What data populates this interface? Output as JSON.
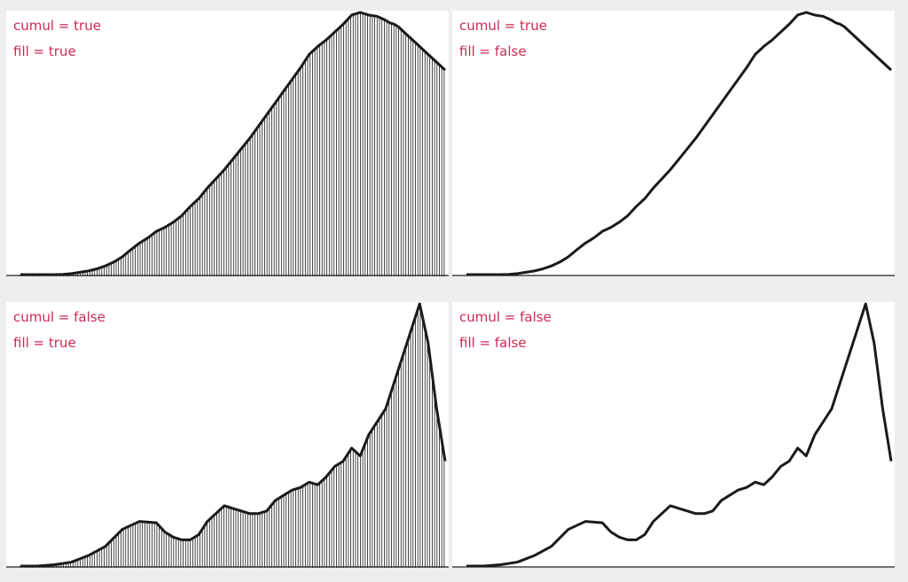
{
  "colors": {
    "label": "#cc2b52",
    "line": "#1a1a1a",
    "panel_bg": "#ffffff",
    "page_bg": "#eeeeee"
  },
  "chart_data": [
    {
      "type": "histogram",
      "label_cumul": "cumul = true",
      "label_fill": "fill = true",
      "cumulative": true,
      "fill": true,
      "x_range": [
        0,
        1
      ],
      "y_range": [
        0,
        1
      ],
      "series": {
        "x": [
          0,
          0.02,
          0.04,
          0.06,
          0.08,
          0.1,
          0.12,
          0.14,
          0.16,
          0.18,
          0.2,
          0.22,
          0.24,
          0.26,
          0.28,
          0.3,
          0.32,
          0.34,
          0.36,
          0.38,
          0.4,
          0.42,
          0.44,
          0.46,
          0.48,
          0.5,
          0.52,
          0.54,
          0.56,
          0.58,
          0.6,
          0.62,
          0.64,
          0.66,
          0.68,
          0.7,
          0.72,
          0.74,
          0.76,
          0.78,
          0.8,
          0.82,
          0.84,
          0.86,
          0.87,
          0.88,
          0.89,
          0.9,
          0.92,
          0.94,
          0.96,
          0.98,
          1.0
        ],
        "y": [
          0,
          0,
          0,
          0,
          0,
          0.001,
          0.004,
          0.009,
          0.014,
          0.022,
          0.033,
          0.048,
          0.068,
          0.095,
          0.12,
          0.14,
          0.165,
          0.18,
          0.2,
          0.225,
          0.26,
          0.29,
          0.33,
          0.365,
          0.4,
          0.44,
          0.48,
          0.52,
          0.565,
          0.61,
          0.655,
          0.7,
          0.745,
          0.79,
          0.84,
          0.87,
          0.895,
          0.925,
          0.955,
          0.99,
          1.0,
          0.99,
          0.985,
          0.97,
          0.96,
          0.955,
          0.945,
          0.93,
          0.9,
          0.87,
          0.84,
          0.81,
          0.78
        ]
      }
    },
    {
      "type": "line",
      "label_cumul": "cumul = true",
      "label_fill": "fill = false",
      "cumulative": true,
      "fill": false,
      "x_range": [
        0,
        1
      ],
      "y_range": [
        0,
        1
      ],
      "series": {
        "x": [
          0,
          0.02,
          0.04,
          0.06,
          0.08,
          0.1,
          0.12,
          0.14,
          0.16,
          0.18,
          0.2,
          0.22,
          0.24,
          0.26,
          0.28,
          0.3,
          0.32,
          0.34,
          0.36,
          0.38,
          0.4,
          0.42,
          0.44,
          0.46,
          0.48,
          0.5,
          0.52,
          0.54,
          0.56,
          0.58,
          0.6,
          0.62,
          0.64,
          0.66,
          0.68,
          0.7,
          0.72,
          0.74,
          0.76,
          0.78,
          0.8,
          0.82,
          0.84,
          0.86,
          0.87,
          0.88,
          0.89,
          0.9,
          0.92,
          0.94,
          0.96,
          0.98,
          1.0
        ],
        "y": [
          0,
          0,
          0,
          0,
          0,
          0.001,
          0.004,
          0.009,
          0.014,
          0.022,
          0.033,
          0.048,
          0.068,
          0.095,
          0.12,
          0.14,
          0.165,
          0.18,
          0.2,
          0.225,
          0.26,
          0.29,
          0.33,
          0.365,
          0.4,
          0.44,
          0.48,
          0.52,
          0.565,
          0.61,
          0.655,
          0.7,
          0.745,
          0.79,
          0.84,
          0.87,
          0.895,
          0.925,
          0.955,
          0.99,
          1.0,
          0.99,
          0.985,
          0.97,
          0.96,
          0.955,
          0.945,
          0.93,
          0.9,
          0.87,
          0.84,
          0.81,
          0.78
        ]
      }
    },
    {
      "type": "histogram",
      "label_cumul": "cumul = false",
      "label_fill": "fill = true",
      "cumulative": false,
      "fill": true,
      "x_range": [
        0,
        1
      ],
      "y_range": [
        0,
        1
      ],
      "series": {
        "x": [
          0,
          0.04,
          0.08,
          0.12,
          0.16,
          0.2,
          0.24,
          0.28,
          0.32,
          0.34,
          0.36,
          0.38,
          0.4,
          0.42,
          0.44,
          0.46,
          0.48,
          0.5,
          0.52,
          0.54,
          0.56,
          0.58,
          0.6,
          0.62,
          0.64,
          0.66,
          0.68,
          0.7,
          0.72,
          0.74,
          0.76,
          0.78,
          0.8,
          0.82,
          0.84,
          0.86,
          0.88,
          0.9,
          0.92,
          0.94,
          0.96,
          0.98,
          1.0
        ],
        "y": [
          0,
          0,
          0.005,
          0.015,
          0.04,
          0.075,
          0.14,
          0.17,
          0.165,
          0.13,
          0.11,
          0.1,
          0.1,
          0.12,
          0.17,
          0.2,
          0.23,
          0.22,
          0.21,
          0.2,
          0.2,
          0.21,
          0.25,
          0.27,
          0.29,
          0.3,
          0.32,
          0.31,
          0.34,
          0.38,
          0.4,
          0.45,
          0.42,
          0.5,
          0.55,
          0.6,
          0.7,
          0.8,
          0.9,
          1.0,
          0.85,
          0.6,
          0.4
        ]
      }
    },
    {
      "type": "line",
      "label_cumul": "cumul = false",
      "label_fill": "fill = false",
      "cumulative": false,
      "fill": false,
      "x_range": [
        0,
        1
      ],
      "y_range": [
        0,
        1
      ],
      "series": {
        "x": [
          0,
          0.04,
          0.08,
          0.12,
          0.16,
          0.2,
          0.24,
          0.28,
          0.32,
          0.34,
          0.36,
          0.38,
          0.4,
          0.42,
          0.44,
          0.46,
          0.48,
          0.5,
          0.52,
          0.54,
          0.56,
          0.58,
          0.6,
          0.62,
          0.64,
          0.66,
          0.68,
          0.7,
          0.72,
          0.74,
          0.76,
          0.78,
          0.8,
          0.82,
          0.84,
          0.86,
          0.88,
          0.9,
          0.92,
          0.94,
          0.96,
          0.98,
          1.0
        ],
        "y": [
          0,
          0,
          0.005,
          0.015,
          0.04,
          0.075,
          0.14,
          0.17,
          0.165,
          0.13,
          0.11,
          0.1,
          0.1,
          0.12,
          0.17,
          0.2,
          0.23,
          0.22,
          0.21,
          0.2,
          0.2,
          0.21,
          0.25,
          0.27,
          0.29,
          0.3,
          0.32,
          0.31,
          0.34,
          0.38,
          0.4,
          0.45,
          0.42,
          0.5,
          0.55,
          0.6,
          0.7,
          0.8,
          0.9,
          1.0,
          0.85,
          0.6,
          0.4
        ]
      }
    }
  ]
}
